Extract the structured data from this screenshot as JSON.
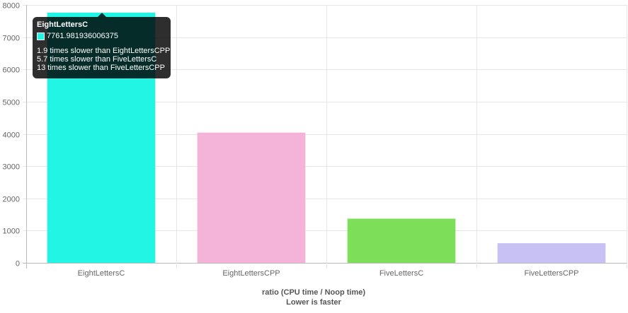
{
  "chart_data": {
    "type": "bar",
    "categories": [
      "EightLettersC",
      "EightLettersCPP",
      "FiveLettersC",
      "FiveLettersCPP"
    ],
    "values": [
      7761.981936006375,
      4040,
      1370,
      610
    ],
    "colors": [
      "#22f5e3",
      "#f4b3d9",
      "#7ddf59",
      "#c8c1f3"
    ],
    "ylim": [
      0,
      8000
    ],
    "yticks": [
      0,
      1000,
      2000,
      3000,
      4000,
      5000,
      6000,
      7000,
      8000
    ],
    "xlabel": "ratio (CPU time / Noop time)",
    "xlabel_sub": "Lower is faster",
    "grid": true,
    "legend": "none"
  },
  "tooltip": {
    "title": "EightLettersC",
    "value": "7761.981936006375",
    "swatch_color": "#22f5e3",
    "lines": [
      "1.9 times slower than EightLettersCPP",
      "5.7 times slower than FiveLettersC",
      "13 times slower than FiveLettersCPP"
    ]
  }
}
